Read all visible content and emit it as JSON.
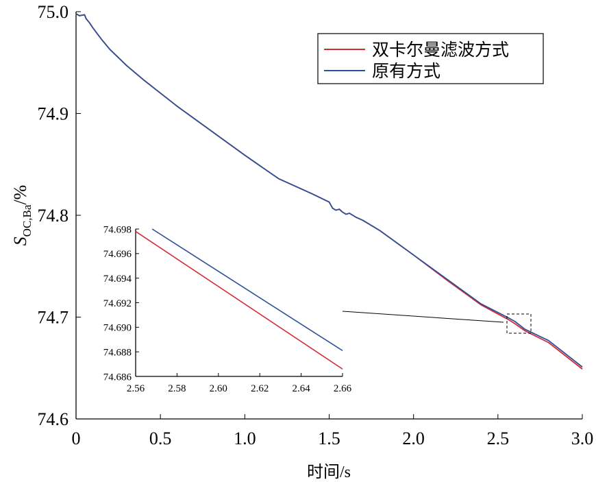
{
  "chart_data": [
    {
      "type": "line",
      "xlabel": "时间/s",
      "ylabel_main": "S",
      "ylabel_sub": "OC,Ba",
      "ylabel_unit": "/%",
      "xlim": [
        0,
        3.0
      ],
      "ylim": [
        74.6,
        75.0
      ],
      "x_ticks": [
        "0",
        "0.5",
        "1.0",
        "1.5",
        "2.0",
        "2.5",
        "3.0"
      ],
      "y_ticks": [
        "74.6",
        "74.7",
        "74.8",
        "74.9",
        "75.0"
      ],
      "legend_position": "top-right",
      "series": [
        {
          "name": "双卡尔曼滤波方式",
          "color": "#d42a37",
          "x": [
            0,
            0.02,
            0.05,
            0.06,
            0.08,
            0.1,
            0.15,
            0.2,
            0.3,
            0.4,
            0.5,
            0.6,
            0.8,
            1.0,
            1.2,
            1.4,
            1.5,
            1.52,
            1.54,
            1.56,
            1.58,
            1.6,
            1.62,
            1.64,
            1.66,
            1.7,
            1.8,
            2.0,
            2.2,
            2.4,
            2.56,
            2.6,
            2.66,
            2.8,
            3.0
          ],
          "y": [
            74.998,
            74.996,
            74.997,
            74.993,
            74.989,
            74.984,
            74.973,
            74.963,
            74.947,
            74.933,
            74.92,
            74.907,
            74.883,
            74.859,
            74.836,
            74.821,
            74.813,
            74.807,
            74.805,
            74.806,
            74.803,
            74.801,
            74.802,
            74.8,
            74.798,
            74.795,
            74.785,
            74.761,
            74.736,
            74.712,
            74.6978,
            74.6936,
            74.6866,
            74.675,
            74.649
          ]
        },
        {
          "name": "原有方式",
          "color": "#2d4f97",
          "x": [
            0,
            0.02,
            0.05,
            0.06,
            0.08,
            0.1,
            0.15,
            0.2,
            0.3,
            0.4,
            0.5,
            0.6,
            0.8,
            1.0,
            1.2,
            1.4,
            1.5,
            1.52,
            1.54,
            1.56,
            1.58,
            1.6,
            1.62,
            1.64,
            1.66,
            1.7,
            1.8,
            2.0,
            2.2,
            2.4,
            2.56,
            2.6,
            2.66,
            2.8,
            3.0
          ],
          "y": [
            74.998,
            74.996,
            74.997,
            74.993,
            74.989,
            74.984,
            74.973,
            74.963,
            74.947,
            74.933,
            74.92,
            74.907,
            74.883,
            74.859,
            74.836,
            74.821,
            74.813,
            74.807,
            74.805,
            74.806,
            74.803,
            74.801,
            74.802,
            74.8,
            74.798,
            74.795,
            74.785,
            74.761,
            74.737,
            74.713,
            74.6995,
            74.6958,
            74.6881,
            74.677,
            74.651
          ]
        }
      ]
    },
    {
      "type": "line",
      "role": "inset-zoom",
      "xlim": [
        2.56,
        2.66
      ],
      "ylim": [
        74.686,
        74.698
      ],
      "x_ticks": [
        "2.56",
        "2.58",
        "2.60",
        "2.62",
        "2.64",
        "2.66"
      ],
      "y_ticks": [
        "74.686",
        "74.688",
        "74.690",
        "74.692",
        "74.694",
        "74.696",
        "74.698"
      ],
      "series": [
        {
          "name": "双卡尔曼滤波方式",
          "color": "#d42a37",
          "x": [
            2.56,
            2.66
          ],
          "y": [
            74.6978,
            74.6866
          ]
        },
        {
          "name": "原有方式",
          "color": "#2d4f97",
          "x": [
            2.568,
            2.66
          ],
          "y": [
            74.698,
            74.6881
          ]
        }
      ]
    }
  ]
}
